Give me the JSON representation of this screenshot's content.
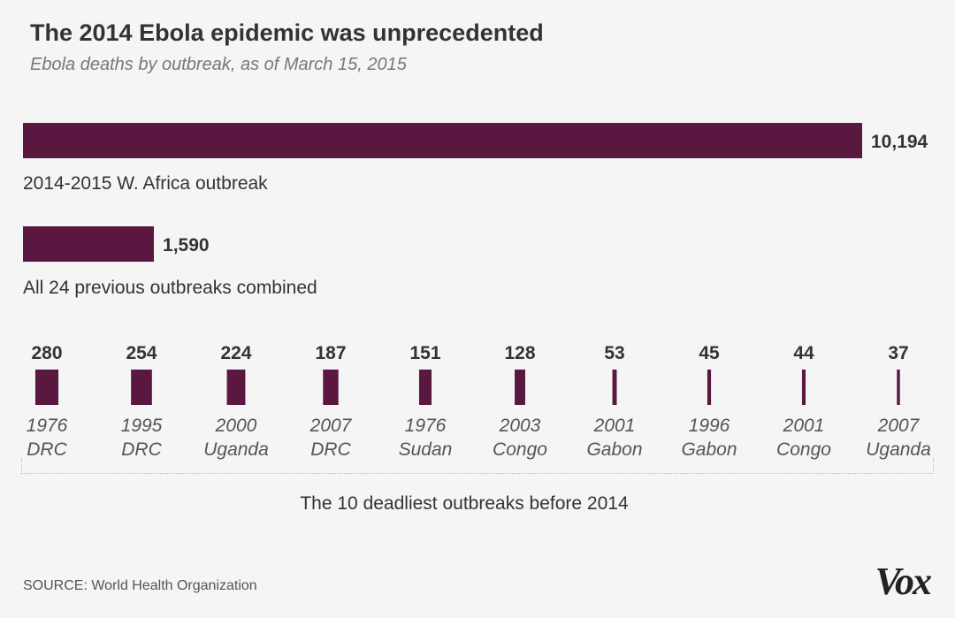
{
  "header": {
    "title": "The 2014 Ebola epidemic was unprecedented",
    "subtitle": "Ebola deaths by outbreak, as of March 15, 2015"
  },
  "colors": {
    "bar": "#5a1740",
    "background": "#f5f5f5"
  },
  "chart_data": [
    {
      "type": "bar",
      "orientation": "horizontal",
      "title": "The 2014 Ebola epidemic was unprecedented",
      "subtitle": "Ebola deaths by outbreak, as of March 15, 2015",
      "series": [
        {
          "label": "2014-2015 W. Africa outbreak",
          "value": 10194,
          "value_label": "10,194"
        },
        {
          "label": "All 24 previous outbreaks combined",
          "value": 1590,
          "value_label": "1,590"
        }
      ],
      "xlim": [
        0,
        10194
      ]
    },
    {
      "type": "bar",
      "orientation": "horizontal",
      "title": "The 10 deadliest outbreaks before 2014",
      "categories": [
        {
          "year": "1976",
          "place": "DRC",
          "value": 280
        },
        {
          "year": "1995",
          "place": "DRC",
          "value": 254
        },
        {
          "year": "2000",
          "place": "Uganda",
          "value": 224
        },
        {
          "year": "2007",
          "place": "DRC",
          "value": 187
        },
        {
          "year": "1976",
          "place": "Sudan",
          "value": 151
        },
        {
          "year": "2003",
          "place": "Congo",
          "value": 128
        },
        {
          "year": "2001",
          "place": "Gabon",
          "value": 53
        },
        {
          "year": "1996",
          "place": "Gabon",
          "value": 45
        },
        {
          "year": "2001",
          "place": "Congo",
          "value": 44
        },
        {
          "year": "2007",
          "place": "Uganda",
          "value": 37
        }
      ],
      "xlim": [
        0,
        10194
      ]
    }
  ],
  "footer": {
    "source": "SOURCE: World Health Organization",
    "logo": "Vox"
  }
}
